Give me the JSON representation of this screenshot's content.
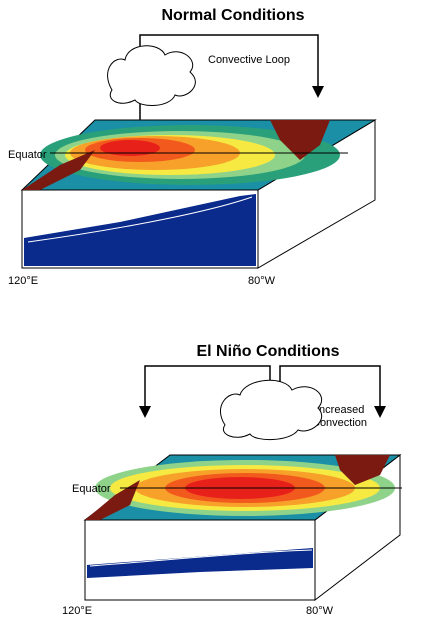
{
  "panels": [
    {
      "title": "Normal Conditions",
      "loop_label": "Convective Loop",
      "equator": "Equator",
      "west": "120°E",
      "east": "80°W"
    },
    {
      "title": "El Niño Conditions",
      "loop_label": [
        "Increased",
        "Convection"
      ],
      "equator": "Equator",
      "west": "120°E",
      "east": "80°W"
    }
  ]
}
